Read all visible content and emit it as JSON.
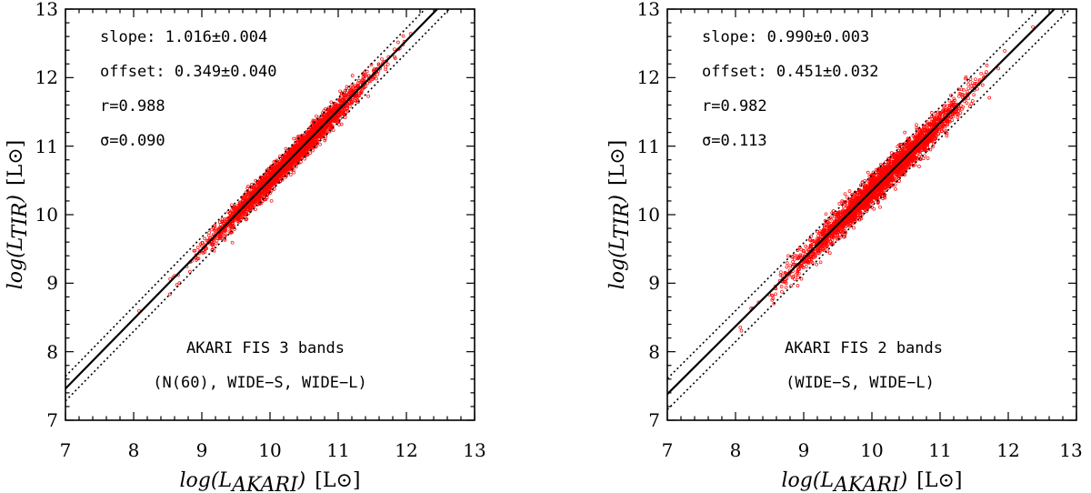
{
  "chart_data": [
    {
      "type": "scatter",
      "id": "fis3",
      "xlim": [
        7,
        13
      ],
      "ylim": [
        7,
        13
      ],
      "x_ticks": [
        "7",
        "8",
        "9",
        "10",
        "11",
        "12",
        "13"
      ],
      "y_ticks": [
        "7",
        "8",
        "9",
        "10",
        "11",
        "12",
        "13"
      ],
      "xlabel": {
        "main": "log(L",
        "sub": "AKARI",
        "close": ")",
        "unit": "[L⊙]"
      },
      "ylabel": {
        "main": "log(L",
        "sub": "TIR",
        "close": ")",
        "unit": "[L⊙]"
      },
      "stats": {
        "slope": "slope: 1.016±0.004",
        "offset": "offset: 0.349±0.040",
        "r": "r=0.988",
        "sigma": "σ=0.090"
      },
      "band_title": "AKARI FIS 3 bands",
      "band_list": "(N(60), WIDE−S, WIDE−L)",
      "fit": {
        "slope": 1.016,
        "offset": 0.349
      },
      "bounds_offset": 0.18,
      "point_color": "#ff0000",
      "point_range": [
        7.8,
        12.4
      ],
      "point_center": 10.3,
      "point_spread": 0.55
    },
    {
      "type": "scatter",
      "id": "fis2",
      "xlim": [
        7,
        13
      ],
      "ylim": [
        7,
        13
      ],
      "x_ticks": [
        "7",
        "8",
        "9",
        "10",
        "11",
        "12",
        "13"
      ],
      "y_ticks": [
        "7",
        "8",
        "9",
        "10",
        "11",
        "12",
        "13"
      ],
      "xlabel": {
        "main": "log(L",
        "sub": "AKARI",
        "close": ")",
        "unit": "[L⊙]"
      },
      "ylabel": {
        "main": "log(L",
        "sub": "TIR",
        "close": ")",
        "unit": "[L⊙]"
      },
      "stats": {
        "slope": "slope: 0.990±0.003",
        "offset": "offset: 0.451±0.032",
        "r": "r=0.982",
        "sigma": "σ=0.113"
      },
      "band_title": "AKARI FIS 2 bands",
      "band_list": "(WIDE−S, WIDE−L)",
      "fit": {
        "slope": 0.99,
        "offset": 0.451
      },
      "bounds_offset": 0.226,
      "point_color": "#ff0000",
      "point_range": [
        7.8,
        12.4
      ],
      "point_center": 10.1,
      "point_spread": 0.6
    }
  ]
}
